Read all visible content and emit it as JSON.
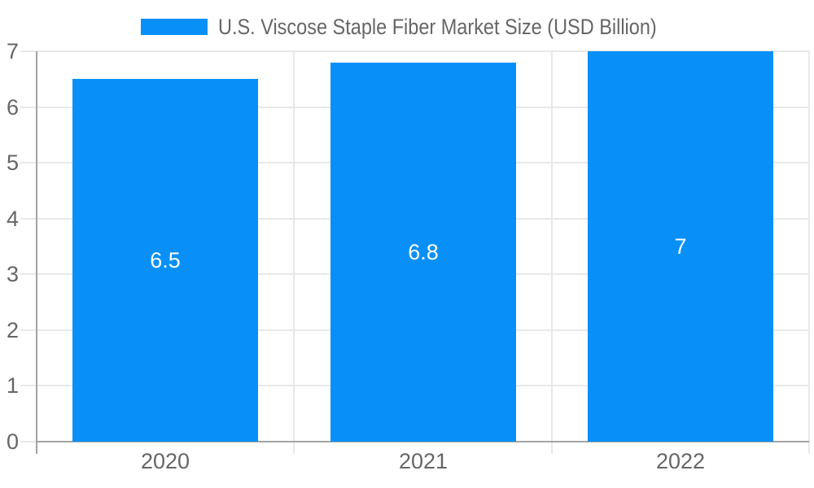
{
  "chart_data": {
    "type": "bar",
    "title": "U.S. Viscose Staple Fiber Market Size (USD Billion)",
    "categories": [
      "2020",
      "2021",
      "2022"
    ],
    "values": [
      6.5,
      6.8,
      7
    ],
    "data_labels": [
      "6.5",
      "6.8",
      "7"
    ],
    "xlabel": "",
    "ylabel": "",
    "ylim": [
      0,
      7
    ],
    "yticks": [
      0,
      1,
      2,
      3,
      4,
      5,
      6,
      7
    ],
    "grid": true,
    "legend_position": "top",
    "colors": {
      "bar": "#0890f8",
      "data_label": "#ffffff",
      "axis_text": "#666666",
      "legend_text": "#666666",
      "gridline": "#e8e8e8",
      "axis_line": "#a3a3a3",
      "background": "#ffffff"
    }
  }
}
